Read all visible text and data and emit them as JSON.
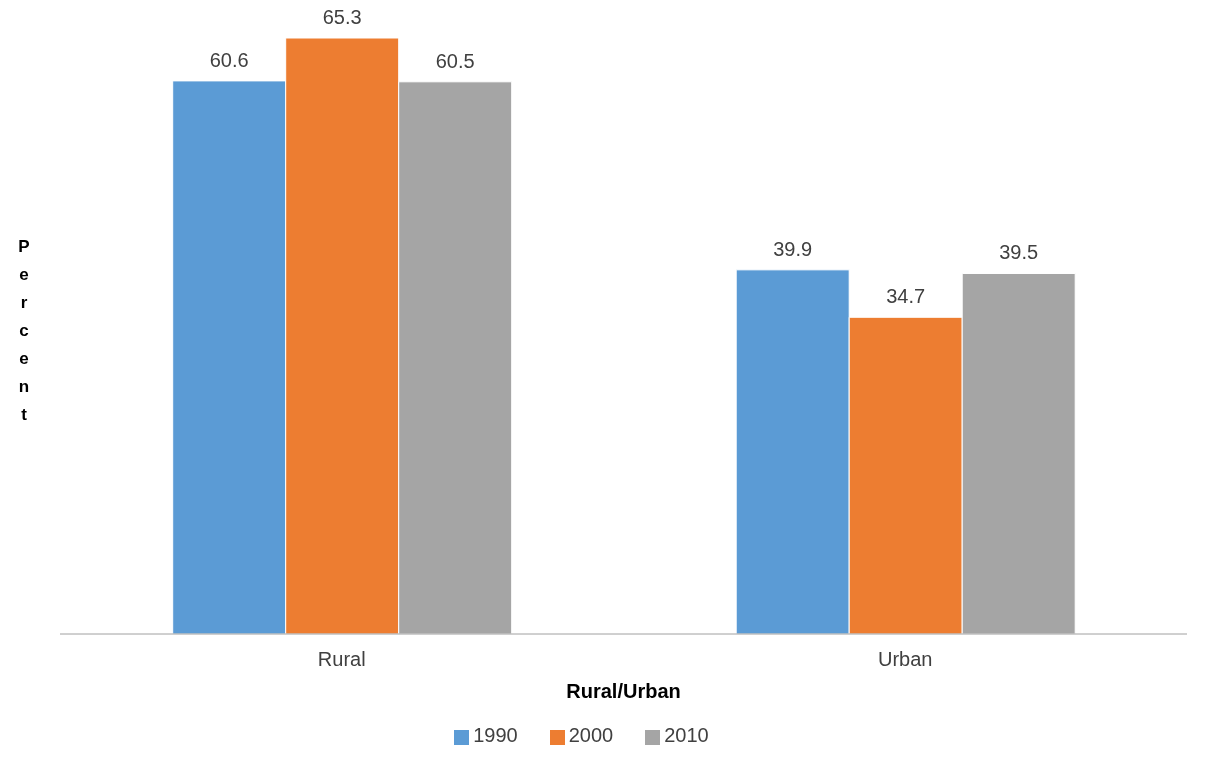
{
  "chart_data": {
    "type": "bar",
    "xlabel": "Rural/Urban",
    "ylabel": "Percent",
    "categories": [
      "Rural",
      "Urban"
    ],
    "series": [
      {
        "name": "1990",
        "color": "#5b9bd5",
        "values": [
          60.6,
          39.9
        ]
      },
      {
        "name": "2000",
        "color": "#ed7d31",
        "values": [
          65.3,
          34.7
        ]
      },
      {
        "name": "2010",
        "color": "#a5a5a5",
        "values": [
          60.5,
          39.5
        ]
      }
    ],
    "relative": false,
    "data_labels": true,
    "legend": "bottom",
    "grid": false
  }
}
